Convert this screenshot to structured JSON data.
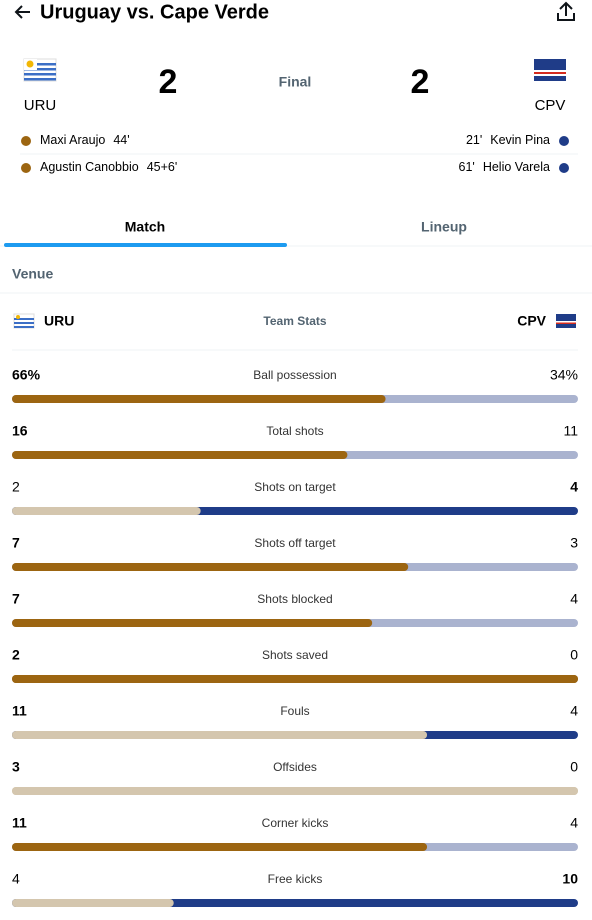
{
  "header": {
    "title": "Uruguay vs. Cape Verde"
  },
  "match": {
    "home": {
      "abbr": "URU",
      "score": 2
    },
    "away": {
      "abbr": "CPV",
      "score": 2
    },
    "status": "Final"
  },
  "scorers": {
    "home": [
      {
        "name": "Maxi Araujo",
        "minute": "44'"
      },
      {
        "name": "Agustin Canobbio",
        "minute": "45+6'"
      }
    ],
    "away": [
      {
        "name": "Kevin Pina",
        "minute": "21'"
      },
      {
        "name": "Helio Varela",
        "minute": "61'"
      }
    ]
  },
  "tabs": [
    "Match",
    "Lineup"
  ],
  "venue": "Venue",
  "team_stats": {
    "title": "Team Stats",
    "home": "URU",
    "away": "CPV",
    "rows": [
      {
        "label": "Ball possession",
        "home": "66%",
        "away": "34%",
        "colors": [
          "#9c6511",
          "#aab3cf"
        ]
      },
      {
        "label": "Total shots",
        "home": 16,
        "away": 11,
        "colors": [
          "#9c6511",
          "#aab3cf"
        ]
      },
      {
        "label": "Shots on target",
        "home": 2,
        "away": 4,
        "colors": [
          "#d4c6ae",
          "#1f3c88"
        ]
      },
      {
        "label": "Shots off target",
        "home": 7,
        "away": 3,
        "colors": [
          "#9c6511",
          "#aab3cf"
        ]
      },
      {
        "label": "Shots blocked",
        "home": 7,
        "away": 4,
        "colors": [
          "#9c6511",
          "#aab3cf"
        ]
      },
      {
        "label": "Shots saved",
        "home": 2,
        "away": 0,
        "colors": [
          "#9c6511",
          "#aab3cf"
        ]
      },
      {
        "label": "Fouls",
        "home": 11,
        "away": 4,
        "colors": [
          "#d4c6ae",
          "#1f3c88"
        ]
      },
      {
        "label": "Offsides",
        "home": 3,
        "away": 0,
        "colors": [
          "#d4c6ae",
          "#1f3c88"
        ]
      },
      {
        "label": "Corner kicks",
        "home": 11,
        "away": 4,
        "colors": [
          "#9c6511",
          "#aab3cf"
        ]
      },
      {
        "label": "Free kicks",
        "home": 4,
        "away": 10,
        "colors": [
          "#d4c6ae",
          "#1f3c88"
        ]
      }
    ]
  }
}
